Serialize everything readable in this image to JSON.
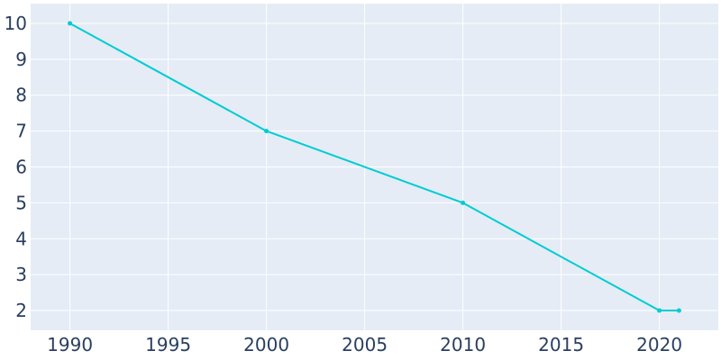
{
  "chart_data": {
    "type": "line",
    "x": [
      1990,
      2000,
      2010,
      2020,
      2021
    ],
    "series": [
      {
        "values": [
          10,
          7,
          5,
          2,
          2
        ]
      }
    ],
    "xlim": [
      1988,
      2023
    ],
    "ylim": [
      1.45,
      10.55
    ],
    "xticks": [
      1990,
      1995,
      2000,
      2005,
      2010,
      2015,
      2020
    ],
    "yticks": [
      2,
      3,
      4,
      5,
      6,
      7,
      8,
      9,
      10
    ],
    "grid": true,
    "legend": "none",
    "colors": {
      "line": "#00ccd2",
      "plot_background": "#e5ecf6",
      "grid": "#ffffff",
      "tick_text": "#2a3f5f"
    }
  }
}
